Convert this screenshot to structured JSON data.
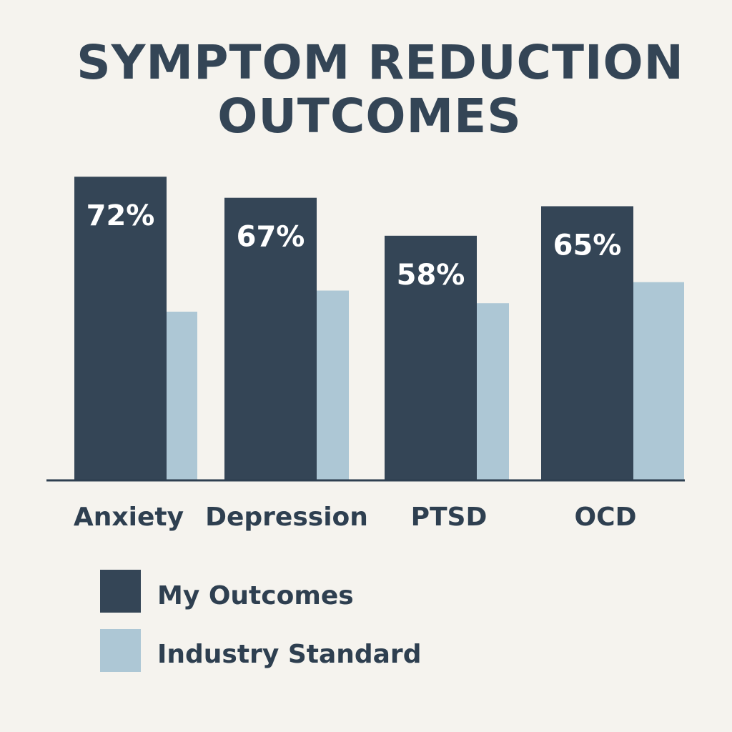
{
  "chart_data": {
    "type": "bar",
    "title_lines": [
      "SYMPTOM REDUCTION",
      "OUTCOMES"
    ],
    "categories": [
      "Anxiety",
      "Depression",
      "PTSD",
      "OCD"
    ],
    "series": [
      {
        "name": "My Outcomes",
        "values": [
          72,
          67,
          58,
          65
        ],
        "labels": [
          "72%",
          "67%",
          "58%",
          "65%"
        ],
        "color": "#344556"
      },
      {
        "name": "Industry Standard",
        "values": [
          40,
          45,
          42,
          47
        ],
        "color": "#adc7d5"
      }
    ],
    "xlabel": "",
    "ylabel": "",
    "ylim": [
      0,
      100
    ],
    "grid": false,
    "legend_position": "bottom-left"
  }
}
